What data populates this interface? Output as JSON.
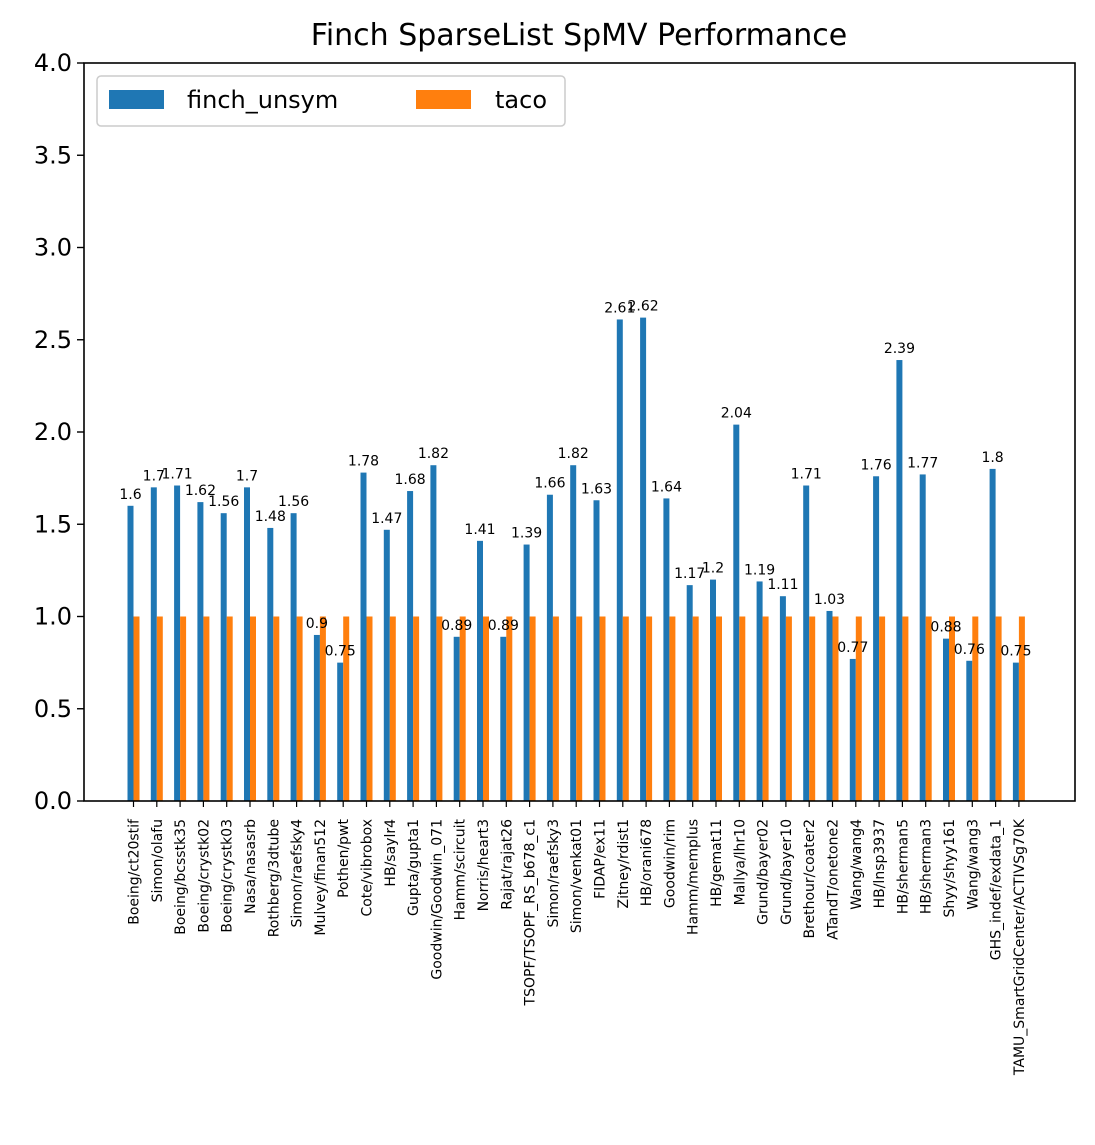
{
  "chart_data": {
    "type": "bar",
    "title": "Finch SparseList SpMV Performance",
    "xlabel": "",
    "ylabel": "",
    "ylim": [
      0,
      4.0
    ],
    "yticks": [
      "0.0",
      "0.5",
      "1.0",
      "1.5",
      "2.0",
      "2.5",
      "3.0",
      "3.5",
      "4.0"
    ],
    "grid": false,
    "legend_position": "top-left",
    "categories": [
      "Boeing/ct20stif",
      "Simon/olafu",
      "Boeing/bcsstk35",
      "Boeing/crystk02",
      "Boeing/crystk03",
      "Nasa/nasasrb",
      "Rothberg/3dtube",
      "Simon/raefsky4",
      "Mulvey/finan512",
      "Pothen/pwt",
      "Cote/vibrobox",
      "HB/saylr4",
      "Gupta/gupta1",
      "Goodwin/Goodwin_071",
      "Hamm/scircuit",
      "Norris/heart3",
      "Rajat/rajat26",
      "TSOPF/TSOPF_RS_b678_c1",
      "Simon/raefsky3",
      "Simon/venkat01",
      "FIDAP/ex11",
      "Zitney/rdist1",
      "HB/orani678",
      "Goodwin/rim",
      "Hamm/memplus",
      "HB/gemat11",
      "Mallya/lhr10",
      "Grund/bayer02",
      "Grund/bayer10",
      "Brethour/coater2",
      "ATandT/onetone2",
      "Wang/wang4",
      "HB/lnsp3937",
      "HB/sherman5",
      "HB/sherman3",
      "Shyy/shyy161",
      "Wang/wang3",
      "GHS_indef/exdata_1",
      "TAMU_SmartGridCenter/ACTIVSg70K"
    ],
    "series": [
      {
        "name": "finch_unsym",
        "color": "#1f77b4",
        "values": [
          1.6,
          1.7,
          1.71,
          1.62,
          1.56,
          1.7,
          1.48,
          1.56,
          0.9,
          0.75,
          1.78,
          1.47,
          1.68,
          1.82,
          0.89,
          1.41,
          0.89,
          1.39,
          1.66,
          1.82,
          1.63,
          2.61,
          2.62,
          1.64,
          1.17,
          1.2,
          2.04,
          1.19,
          1.11,
          1.71,
          1.03,
          0.77,
          1.76,
          2.39,
          1.77,
          0.88,
          0.76,
          1.8,
          0.75
        ],
        "labels": [
          "1.6",
          "1.7",
          "1.71",
          "1.62",
          "1.56",
          "1.7",
          "1.48",
          "1.56",
          "0.9",
          "0.75",
          "1.78",
          "1.47",
          "1.68",
          "1.82",
          "0.89",
          "1.41",
          "0.89",
          "1.39",
          "1.66",
          "1.82",
          "1.63",
          "2.61",
          "2.62",
          "1.64",
          "1.17",
          "1.2",
          "2.04",
          "1.19",
          "1.11",
          "1.71",
          "1.03",
          "0.77",
          "1.76",
          "2.39",
          "1.77",
          "0.88",
          "0.76",
          "1.8",
          "0.75"
        ]
      },
      {
        "name": "taco",
        "color": "#ff7f0e",
        "values": [
          1,
          1,
          1,
          1,
          1,
          1,
          1,
          1,
          1,
          1,
          1,
          1,
          1,
          1,
          1,
          1,
          1,
          1,
          1,
          1,
          1,
          1,
          1,
          1,
          1,
          1,
          1,
          1,
          1,
          1,
          1,
          1,
          1,
          1,
          1,
          1,
          1,
          1,
          1
        ]
      }
    ]
  }
}
